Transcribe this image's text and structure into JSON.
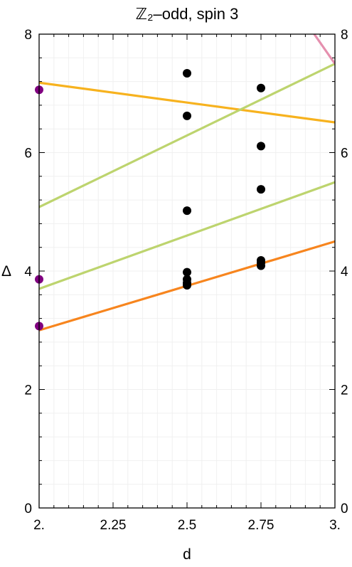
{
  "chart_data": {
    "type": "scatter",
    "title": "ℤ₂–odd, spin 3",
    "xlabel": "d",
    "ylabel": "Δ",
    "xlim": [
      2.0,
      3.0
    ],
    "ylim": [
      0,
      8
    ],
    "x_ticks": [
      {
        "value": 2.0,
        "label": "2."
      },
      {
        "value": 2.25,
        "label": "2.25"
      },
      {
        "value": 2.5,
        "label": "2.5"
      },
      {
        "value": 2.75,
        "label": "2.75"
      },
      {
        "value": 3.0,
        "label": "3."
      }
    ],
    "y_ticks": [
      {
        "value": 0,
        "label": "0"
      },
      {
        "value": 2,
        "label": "2"
      },
      {
        "value": 4,
        "label": "4"
      },
      {
        "value": 6,
        "label": "6"
      },
      {
        "value": 8,
        "label": "8"
      }
    ],
    "grid": true,
    "lines": [
      {
        "color": "#F7B21E",
        "x": [
          2.0,
          3.0
        ],
        "y": [
          7.18,
          6.51
        ]
      },
      {
        "color": "#BDD46E",
        "x": [
          2.0,
          3.0
        ],
        "y": [
          5.08,
          7.5
        ]
      },
      {
        "color": "#BDD46E",
        "x": [
          2.0,
          3.0
        ],
        "y": [
          3.7,
          5.5
        ]
      },
      {
        "color": "#F7851E",
        "x": [
          2.0,
          3.0
        ],
        "y": [
          3.0,
          4.5
        ]
      },
      {
        "color": "#E58FAE",
        "x": [
          2.93,
          3.0
        ],
        "y": [
          8.0,
          7.5
        ]
      }
    ],
    "points": [
      {
        "color": "#000000",
        "x": [
          2.5,
          2.5,
          2.5,
          2.5,
          2.5,
          2.5,
          2.5
        ],
        "y": [
          7.34,
          6.62,
          5.02,
          3.98,
          3.86,
          3.8,
          3.76
        ]
      },
      {
        "color": "#000000",
        "x": [
          2.75,
          2.75,
          2.75,
          2.75,
          2.75,
          2.75
        ],
        "y": [
          7.09,
          6.11,
          5.38,
          4.18,
          4.14,
          4.09
        ]
      },
      {
        "color": "#800080",
        "x": [
          2.0,
          2.0,
          2.0
        ],
        "y": [
          7.06,
          3.86,
          3.07
        ]
      }
    ]
  }
}
